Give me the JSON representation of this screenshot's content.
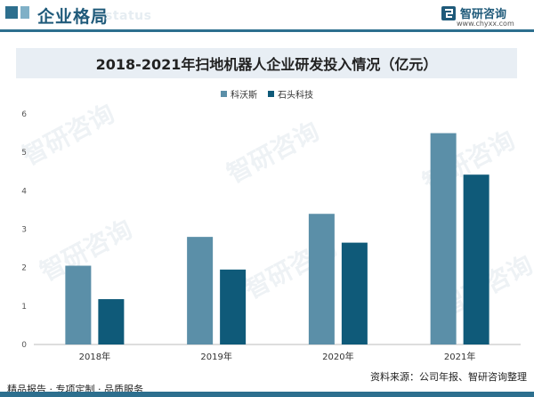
{
  "header": {
    "title": "企业格局",
    "ghost_text": "status",
    "logo_text": "智研咨询",
    "logo_url": "www.chyxx.com"
  },
  "watermark": "智研咨询",
  "chart_data": {
    "type": "bar",
    "title": "2018-2021年扫地机器人企业研发投入情况（亿元）",
    "categories": [
      "2018年",
      "2019年",
      "2020年",
      "2021年"
    ],
    "series": [
      {
        "name": "科沃斯",
        "color": "#5b8fa8",
        "values": [
          2.05,
          2.8,
          3.4,
          5.5
        ]
      },
      {
        "name": "石头科技",
        "color": "#0f5a79",
        "values": [
          1.18,
          1.95,
          2.65,
          4.42
        ]
      }
    ],
    "ylim": [
      0,
      6
    ],
    "yticks": [
      "0",
      "1",
      "2",
      "3",
      "4",
      "5",
      "6"
    ],
    "grid": false,
    "legend": "top-center"
  },
  "footer": {
    "left": "精品报告 · 专项定制 · 品质服务",
    "right": "资料来源：公司年报、智研咨询整理"
  }
}
